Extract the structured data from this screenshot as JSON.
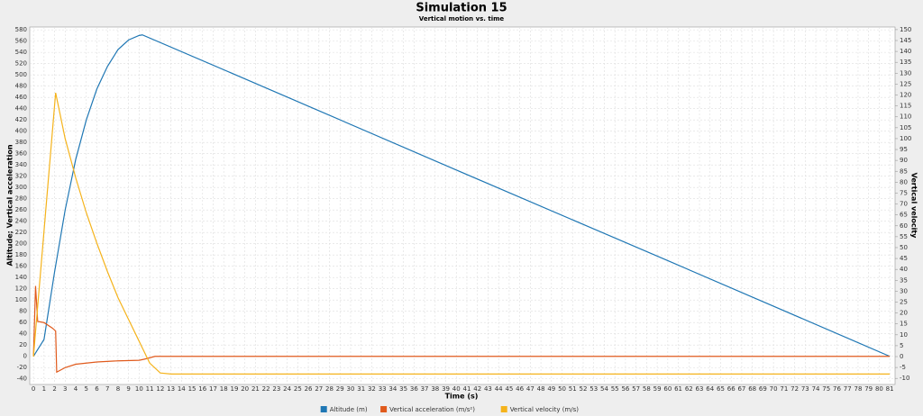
{
  "chart_data": {
    "type": "line",
    "title": "Simulation 15",
    "subtitle": "Vertical motion vs. time",
    "x_label": "Time (s)",
    "y_label": "Altitude; Vertical acceleration",
    "y2_label": "Vertical velocity",
    "xlim": [
      -0.35,
      81.5
    ],
    "ylim": [
      -50,
      585
    ],
    "y2lim": [
      -12.8,
      151.2
    ],
    "grid": true,
    "legend": "bottom",
    "xticks": [
      0,
      1,
      2,
      3,
      4,
      5,
      6,
      7,
      8,
      9,
      10,
      11,
      12,
      13,
      14,
      15,
      16,
      17,
      18,
      19,
      20,
      21,
      22,
      23,
      24,
      25,
      26,
      27,
      28,
      29,
      30,
      31,
      32,
      33,
      34,
      35,
      36,
      37,
      38,
      39,
      40,
      41,
      42,
      43,
      44,
      45,
      46,
      47,
      48,
      49,
      50,
      51,
      52,
      53,
      54,
      55,
      56,
      57,
      58,
      59,
      60,
      61,
      62,
      63,
      64,
      65,
      66,
      67,
      68,
      69,
      70,
      71,
      72,
      73,
      74,
      75,
      76,
      77,
      78,
      79,
      80,
      81
    ],
    "yticks": [
      -40,
      -20,
      0,
      20,
      40,
      60,
      80,
      100,
      120,
      140,
      160,
      180,
      200,
      220,
      240,
      260,
      280,
      300,
      320,
      340,
      360,
      380,
      400,
      420,
      440,
      460,
      480,
      500,
      520,
      540,
      560,
      580
    ],
    "y2ticks": [
      -10,
      -5,
      0,
      5,
      10,
      15,
      20,
      25,
      30,
      35,
      40,
      45,
      50,
      55,
      60,
      65,
      70,
      75,
      80,
      85,
      90,
      95,
      100,
      105,
      110,
      115,
      120,
      125,
      130,
      135,
      140,
      145,
      150
    ],
    "series": [
      {
        "name": "Altitude (m)",
        "color": "#1f77b4",
        "axis": "y",
        "x": [
          0,
          1,
          2,
          3,
          4,
          5,
          6,
          7,
          8,
          9,
          10,
          10.3,
          20,
          40,
          60,
          81
        ],
        "values": [
          0,
          30,
          150,
          260,
          350,
          420,
          475,
          515,
          545,
          562,
          570,
          571,
          493,
          331,
          170,
          0
        ]
      },
      {
        "name": "Vertical acceleration (m/s²)",
        "color": "#e05a1c",
        "axis": "y",
        "x": [
          0,
          0.2,
          0.4,
          1,
          1.8,
          2.1,
          2.2,
          3,
          4,
          6,
          8,
          10,
          10.5,
          11.5,
          81
        ],
        "values": [
          0,
          125,
          62,
          60,
          50,
          45,
          -28,
          -20,
          -14,
          -10,
          -8,
          -7,
          -5,
          0,
          0
        ]
      },
      {
        "name": "Vertical velocity (m/s)",
        "color": "#f5b31b",
        "axis": "y2",
        "x": [
          0,
          2.1,
          3,
          4,
          5,
          6,
          7,
          8,
          9,
          10,
          10.3,
          11,
          12,
          13,
          81
        ],
        "values": [
          0,
          121,
          100,
          82,
          66,
          52,
          39,
          27,
          17,
          7,
          4,
          -3,
          -7.5,
          -8,
          -8
        ]
      }
    ]
  }
}
